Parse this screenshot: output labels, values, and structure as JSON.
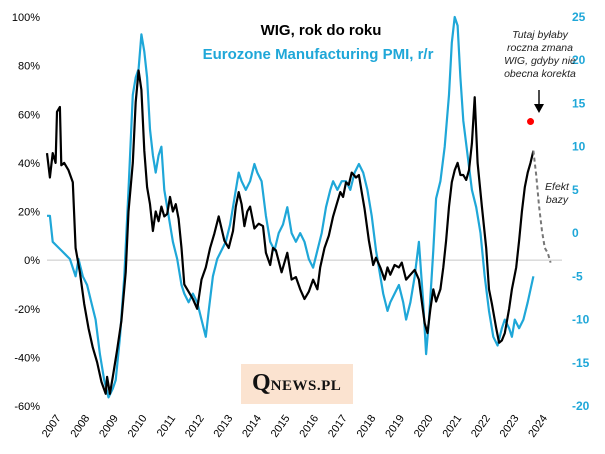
{
  "chart_data": {
    "type": "line",
    "title": "WIG, rok do roku",
    "subtitle": "Eurozone Manufacturing  PMI, r/r",
    "left_axis": {
      "ylim": [
        -60,
        100
      ],
      "ticks": [
        "100%",
        "80%",
        "60%",
        "40%",
        "20%",
        "0%",
        "-20%",
        "-40%",
        "-60%"
      ],
      "color": "#000000"
    },
    "right_axis": {
      "ylim": [
        -20,
        25
      ],
      "ticks": [
        "25",
        "20",
        "15",
        "10",
        "5",
        "0",
        "-5",
        "-10",
        "-15",
        "-20"
      ],
      "color": "#1fa7d8"
    },
    "x_ticks": [
      "2007",
      "2008",
      "2009",
      "2010",
      "2011",
      "2012",
      "2013",
      "2014",
      "2015",
      "2016",
      "2017",
      "2018",
      "2019",
      "2020",
      "2021",
      "2022",
      "2023",
      "2024"
    ],
    "xlim": [
      2007.0,
      2025.0
    ],
    "series": [
      {
        "name": "WIG, rok do roku",
        "axis": "left",
        "color": "#000000",
        "points": [
          [
            2007.0,
            44
          ],
          [
            2007.1,
            34
          ],
          [
            2007.2,
            44
          ],
          [
            2007.3,
            40
          ],
          [
            2007.35,
            61
          ],
          [
            2007.45,
            63
          ],
          [
            2007.5,
            39
          ],
          [
            2007.6,
            40
          ],
          [
            2007.75,
            37
          ],
          [
            2007.9,
            32
          ],
          [
            2008.0,
            5
          ],
          [
            2008.15,
            -5
          ],
          [
            2008.3,
            -18
          ],
          [
            2008.45,
            -28
          ],
          [
            2008.6,
            -36
          ],
          [
            2008.75,
            -42
          ],
          [
            2008.9,
            -50
          ],
          [
            2009.05,
            -55
          ],
          [
            2009.1,
            -48
          ],
          [
            2009.2,
            -55
          ],
          [
            2009.3,
            -48
          ],
          [
            2009.45,
            -37
          ],
          [
            2009.6,
            -25
          ],
          [
            2009.75,
            -5
          ],
          [
            2009.85,
            20
          ],
          [
            2010.0,
            40
          ],
          [
            2010.1,
            65
          ],
          [
            2010.2,
            78
          ],
          [
            2010.3,
            70
          ],
          [
            2010.4,
            45
          ],
          [
            2010.5,
            30
          ],
          [
            2010.6,
            23
          ],
          [
            2010.7,
            12
          ],
          [
            2010.8,
            20
          ],
          [
            2010.9,
            16
          ],
          [
            2011.0,
            22
          ],
          [
            2011.1,
            18
          ],
          [
            2011.2,
            19
          ],
          [
            2011.3,
            26
          ],
          [
            2011.4,
            20
          ],
          [
            2011.5,
            23
          ],
          [
            2011.6,
            17
          ],
          [
            2011.7,
            5
          ],
          [
            2011.8,
            -10
          ],
          [
            2011.9,
            -12
          ],
          [
            2012.1,
            -16
          ],
          [
            2012.25,
            -20
          ],
          [
            2012.4,
            -8
          ],
          [
            2012.55,
            -3
          ],
          [
            2012.7,
            5
          ],
          [
            2012.85,
            11
          ],
          [
            2013.0,
            18
          ],
          [
            2013.2,
            8
          ],
          [
            2013.35,
            5
          ],
          [
            2013.5,
            12
          ],
          [
            2013.6,
            22
          ],
          [
            2013.7,
            28
          ],
          [
            2013.8,
            23
          ],
          [
            2013.9,
            14
          ],
          [
            2014.0,
            20
          ],
          [
            2014.1,
            22
          ],
          [
            2014.25,
            13
          ],
          [
            2014.4,
            15
          ],
          [
            2014.55,
            14
          ],
          [
            2014.65,
            3
          ],
          [
            2014.8,
            -2
          ],
          [
            2014.9,
            5
          ],
          [
            2015.0,
            4
          ],
          [
            2015.2,
            -5
          ],
          [
            2015.4,
            3
          ],
          [
            2015.55,
            -8
          ],
          [
            2015.7,
            -7
          ],
          [
            2015.85,
            -12
          ],
          [
            2016.0,
            -16
          ],
          [
            2016.15,
            -13
          ],
          [
            2016.3,
            -8
          ],
          [
            2016.45,
            -12
          ],
          [
            2016.55,
            -3
          ],
          [
            2016.7,
            5
          ],
          [
            2016.85,
            10
          ],
          [
            2017.0,
            18
          ],
          [
            2017.1,
            22
          ],
          [
            2017.25,
            28
          ],
          [
            2017.35,
            26
          ],
          [
            2017.45,
            32
          ],
          [
            2017.55,
            31
          ],
          [
            2017.65,
            36
          ],
          [
            2017.8,
            34
          ],
          [
            2017.9,
            35
          ],
          [
            2018.0,
            28
          ],
          [
            2018.1,
            21
          ],
          [
            2018.25,
            8
          ],
          [
            2018.4,
            -2
          ],
          [
            2018.5,
            1
          ],
          [
            2018.65,
            -3
          ],
          [
            2018.8,
            -8
          ],
          [
            2018.9,
            -3
          ],
          [
            2019.0,
            -6
          ],
          [
            2019.15,
            -2
          ],
          [
            2019.3,
            -3
          ],
          [
            2019.4,
            -1
          ],
          [
            2019.55,
            -8
          ],
          [
            2019.7,
            -6
          ],
          [
            2019.85,
            -4
          ],
          [
            2020.0,
            -8
          ],
          [
            2020.1,
            -17
          ],
          [
            2020.2,
            -26
          ],
          [
            2020.3,
            -30
          ],
          [
            2020.4,
            -20
          ],
          [
            2020.5,
            -12
          ],
          [
            2020.6,
            -17
          ],
          [
            2020.75,
            -12
          ],
          [
            2020.85,
            -3
          ],
          [
            2020.95,
            8
          ],
          [
            2021.05,
            22
          ],
          [
            2021.15,
            32
          ],
          [
            2021.25,
            37
          ],
          [
            2021.35,
            40
          ],
          [
            2021.45,
            35
          ],
          [
            2021.55,
            35
          ],
          [
            2021.65,
            33
          ],
          [
            2021.75,
            37
          ],
          [
            2021.85,
            48
          ],
          [
            2021.95,
            67
          ],
          [
            2022.05,
            40
          ],
          [
            2022.2,
            22
          ],
          [
            2022.35,
            5
          ],
          [
            2022.45,
            -12
          ],
          [
            2022.55,
            -18
          ],
          [
            2022.7,
            -28
          ],
          [
            2022.8,
            -34
          ],
          [
            2022.9,
            -33
          ],
          [
            2023.0,
            -30
          ],
          [
            2023.15,
            -20
          ],
          [
            2023.25,
            -12
          ],
          [
            2023.4,
            -3
          ],
          [
            2023.5,
            8
          ],
          [
            2023.6,
            20
          ],
          [
            2023.7,
            30
          ],
          [
            2023.8,
            36
          ],
          [
            2023.9,
            40
          ],
          [
            2024.0,
            45
          ]
        ]
      },
      {
        "name": "Eurozone Manufacturing  PMI, r/r",
        "axis": "right",
        "color": "#1fa7d8",
        "points": [
          [
            2007.0,
            2
          ],
          [
            2007.1,
            2
          ],
          [
            2007.2,
            -1
          ],
          [
            2007.35,
            -1.5
          ],
          [
            2007.5,
            -2
          ],
          [
            2007.65,
            -2.5
          ],
          [
            2007.8,
            -3
          ],
          [
            2008.0,
            -5
          ],
          [
            2008.1,
            -3
          ],
          [
            2008.25,
            -5
          ],
          [
            2008.4,
            -6
          ],
          [
            2008.55,
            -8
          ],
          [
            2008.7,
            -10
          ],
          [
            2008.85,
            -14
          ],
          [
            2009.0,
            -17
          ],
          [
            2009.15,
            -19
          ],
          [
            2009.3,
            -18
          ],
          [
            2009.4,
            -17
          ],
          [
            2009.55,
            -12
          ],
          [
            2009.7,
            -5
          ],
          [
            2009.85,
            5
          ],
          [
            2010.0,
            16
          ],
          [
            2010.1,
            18
          ],
          [
            2010.2,
            19
          ],
          [
            2010.3,
            23
          ],
          [
            2010.4,
            21
          ],
          [
            2010.5,
            18
          ],
          [
            2010.6,
            12
          ],
          [
            2010.7,
            9
          ],
          [
            2010.8,
            7
          ],
          [
            2010.9,
            9
          ],
          [
            2011.0,
            10
          ],
          [
            2011.1,
            5
          ],
          [
            2011.25,
            2
          ],
          [
            2011.4,
            -1
          ],
          [
            2011.55,
            -3
          ],
          [
            2011.7,
            -6
          ],
          [
            2011.8,
            -7
          ],
          [
            2011.95,
            -8
          ],
          [
            2012.1,
            -7
          ],
          [
            2012.25,
            -8
          ],
          [
            2012.4,
            -10
          ],
          [
            2012.55,
            -12
          ],
          [
            2012.65,
            -9
          ],
          [
            2012.8,
            -5
          ],
          [
            2012.95,
            -3
          ],
          [
            2013.1,
            -2
          ],
          [
            2013.25,
            -1
          ],
          [
            2013.4,
            1
          ],
          [
            2013.55,
            4
          ],
          [
            2013.7,
            7
          ],
          [
            2013.8,
            6
          ],
          [
            2013.95,
            5
          ],
          [
            2014.1,
            6
          ],
          [
            2014.25,
            8
          ],
          [
            2014.35,
            7
          ],
          [
            2014.5,
            6
          ],
          [
            2014.65,
            2
          ],
          [
            2014.8,
            -1
          ],
          [
            2014.95,
            -2
          ],
          [
            2015.1,
            0
          ],
          [
            2015.25,
            1
          ],
          [
            2015.4,
            3
          ],
          [
            2015.55,
            0
          ],
          [
            2015.7,
            -1
          ],
          [
            2015.85,
            0
          ],
          [
            2016.0,
            -1
          ],
          [
            2016.15,
            -3
          ],
          [
            2016.3,
            -4
          ],
          [
            2016.45,
            -2
          ],
          [
            2016.6,
            0
          ],
          [
            2016.75,
            3
          ],
          [
            2016.9,
            5
          ],
          [
            2017.0,
            6
          ],
          [
            2017.15,
            5
          ],
          [
            2017.3,
            6
          ],
          [
            2017.45,
            6
          ],
          [
            2017.6,
            5
          ],
          [
            2017.75,
            7
          ],
          [
            2017.9,
            8
          ],
          [
            2018.05,
            7
          ],
          [
            2018.2,
            5
          ],
          [
            2018.35,
            2
          ],
          [
            2018.5,
            -2
          ],
          [
            2018.6,
            -4
          ],
          [
            2018.75,
            -7
          ],
          [
            2018.9,
            -9
          ],
          [
            2019.0,
            -8
          ],
          [
            2019.15,
            -7
          ],
          [
            2019.3,
            -6
          ],
          [
            2019.45,
            -8
          ],
          [
            2019.55,
            -10
          ],
          [
            2019.7,
            -8
          ],
          [
            2019.85,
            -5
          ],
          [
            2020.0,
            -1
          ],
          [
            2020.15,
            -8
          ],
          [
            2020.25,
            -14
          ],
          [
            2020.35,
            -10
          ],
          [
            2020.5,
            -2
          ],
          [
            2020.6,
            4
          ],
          [
            2020.75,
            6
          ],
          [
            2020.9,
            10
          ],
          [
            2021.05,
            16
          ],
          [
            2021.15,
            22
          ],
          [
            2021.25,
            25
          ],
          [
            2021.35,
            24
          ],
          [
            2021.45,
            18
          ],
          [
            2021.55,
            13
          ],
          [
            2021.7,
            9
          ],
          [
            2021.85,
            5
          ],
          [
            2022.0,
            3
          ],
          [
            2022.15,
            0
          ],
          [
            2022.3,
            -5
          ],
          [
            2022.45,
            -9
          ],
          [
            2022.6,
            -12
          ],
          [
            2022.75,
            -13
          ],
          [
            2022.9,
            -11
          ],
          [
            2023.0,
            -10
          ],
          [
            2023.15,
            -11
          ],
          [
            2023.25,
            -12
          ],
          [
            2023.35,
            -10
          ],
          [
            2023.5,
            -11
          ],
          [
            2023.65,
            -10
          ],
          [
            2023.8,
            -8
          ],
          [
            2024.0,
            -5
          ]
        ]
      },
      {
        "name": "Efekt bazy",
        "axis": "left",
        "color": "#777777",
        "style": "dashed",
        "points": [
          [
            2024.0,
            45
          ],
          [
            2024.1,
            35
          ],
          [
            2024.2,
            22
          ],
          [
            2024.3,
            12
          ],
          [
            2024.4,
            5
          ],
          [
            2024.5,
            3
          ],
          [
            2024.6,
            -1
          ]
        ]
      }
    ],
    "marker": {
      "x": 2023.9,
      "y": 57,
      "axis": "left",
      "color": "#ff0000"
    },
    "annotations": [
      {
        "lines": [
          "Tutaj byłaby",
          "roczna zmana",
          "WIG, gdyby nie",
          "obecna korekta"
        ]
      },
      {
        "lines": [
          "Efekt",
          "bazy"
        ]
      }
    ],
    "grid": false,
    "legend": "top-center"
  },
  "logo": {
    "initial": "Q",
    "rest": "NEWS.PL"
  }
}
